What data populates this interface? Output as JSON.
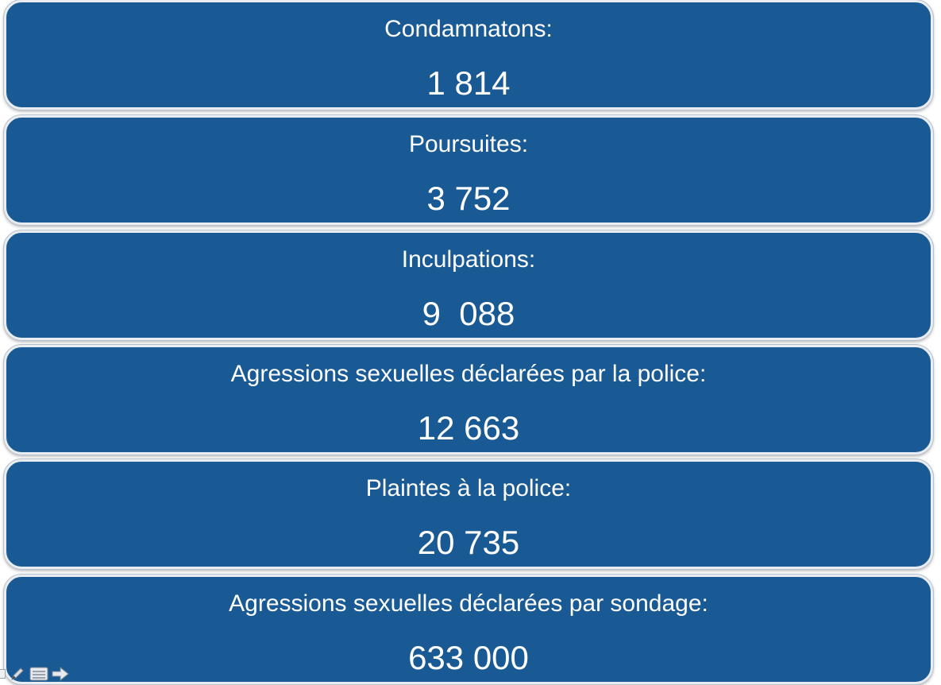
{
  "colors": {
    "box_fill": "#195a94",
    "box_text": "#ffffff"
  },
  "boxes": [
    {
      "label": "Condamnatons:",
      "value": "1 814"
    },
    {
      "label": "Poursuites:",
      "value": "3 752"
    },
    {
      "label": "Inculpations:",
      "value": "9  088"
    },
    {
      "label": "Agressions sexuelles déclarées par la police:",
      "value": "12 663"
    },
    {
      "label": "Plaintes à la police:",
      "value": "20 735"
    },
    {
      "label": "Agressions sexuelles déclarées par sondage:",
      "value": "633 000"
    }
  ],
  "toolbar": {
    "icons": [
      "pen-icon",
      "notes-icon",
      "next-arrow-icon"
    ]
  }
}
